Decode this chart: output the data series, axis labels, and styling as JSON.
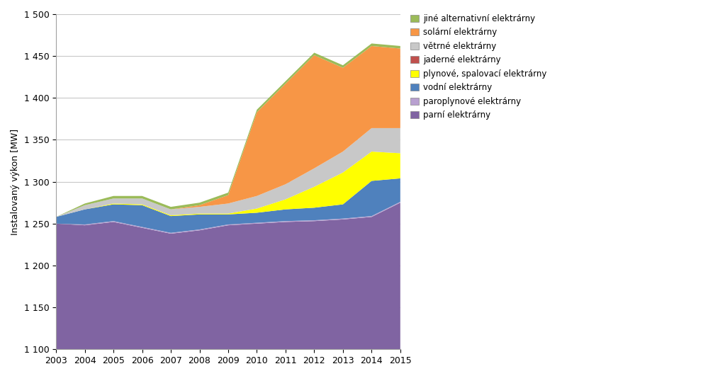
{
  "years": [
    2003,
    2004,
    2005,
    2006,
    2007,
    2008,
    2009,
    2010,
    2011,
    2012,
    2013,
    2014,
    2015
  ],
  "parni": [
    1250,
    1248,
    1252,
    1245,
    1238,
    1242,
    1248,
    1250,
    1252,
    1253,
    1255,
    1258,
    1275
  ],
  "paroplynove": [
    0,
    1,
    1,
    1,
    1,
    1,
    1,
    1,
    1,
    1,
    1,
    1,
    1
  ],
  "vodni": [
    8,
    18,
    20,
    26,
    20,
    18,
    12,
    12,
    14,
    15,
    17,
    42,
    28
  ],
  "plynove": [
    0,
    0,
    1,
    1,
    1,
    1,
    1,
    5,
    12,
    25,
    38,
    35,
    30
  ],
  "jaderne": [
    0,
    0,
    0,
    0,
    0,
    0,
    0,
    0,
    0,
    0,
    0,
    0,
    0
  ],
  "vetrne": [
    0,
    5,
    6,
    7,
    7,
    8,
    12,
    15,
    18,
    22,
    25,
    28,
    30
  ],
  "solarni": [
    0,
    0,
    0,
    0,
    0,
    2,
    10,
    100,
    120,
    135,
    100,
    98,
    95
  ],
  "jine": [
    0,
    2,
    3,
    3,
    3,
    3,
    3,
    3,
    3,
    3,
    3,
    3,
    3
  ],
  "colors": {
    "parni": "#8064A2",
    "paroplynove": "#B8A0D0",
    "vodni": "#4F81BD",
    "plynove": "#FFFF00",
    "jaderne": "#C0504D",
    "vetrne": "#C8C8C8",
    "solarni": "#F79646",
    "jine": "#9BBB59"
  },
  "ylabel": "Instalovaný výkon [MW]",
  "ylim": [
    1100,
    1500
  ],
  "yticks": [
    1100,
    1150,
    1200,
    1250,
    1300,
    1350,
    1400,
    1450,
    1500
  ],
  "legend_labels": [
    "jiné alternativní elektrárny",
    "solární elektrárny",
    "větrné elektrárny",
    "jaderné elektrárny",
    "plynové, spalovací elektrárny",
    "vodní elektrárny",
    "paroplynové elektrárny",
    "parní elektrárny"
  ],
  "legend_colors": [
    "#9BBB59",
    "#F79646",
    "#C8C8C8",
    "#C0504D",
    "#FFFF00",
    "#4F81BD",
    "#B8A0D0",
    "#8064A2"
  ],
  "background_color": "#FFFFFF",
  "grid_color": "#C8C8C8"
}
